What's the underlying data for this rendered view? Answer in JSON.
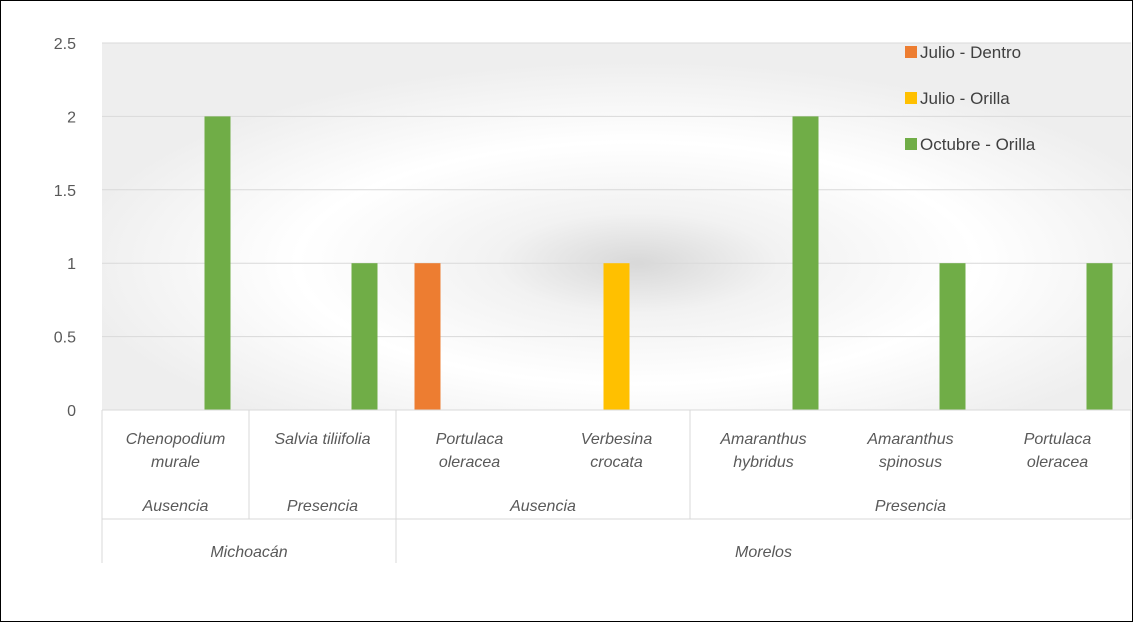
{
  "chart_data": {
    "type": "bar",
    "yticks": [
      "0",
      "0.5",
      "1",
      "1.5",
      "2",
      "2.5"
    ],
    "ylim": [
      0,
      2.5
    ],
    "grid": true,
    "legend_position": "top-right",
    "categories": [
      {
        "lines": [
          "Chenopodium",
          "murale"
        ]
      },
      {
        "lines": [
          "Salvia tiliifolia"
        ]
      },
      {
        "lines": [
          "Portulaca",
          "oleracea"
        ]
      },
      {
        "lines": [
          "Verbesina",
          "crocata"
        ]
      },
      {
        "lines": [
          "Amaranthus",
          "hybridus"
        ]
      },
      {
        "lines": [
          "Amaranthus",
          "spinosus"
        ]
      },
      {
        "lines": [
          "Portulaca",
          "oleracea"
        ]
      }
    ],
    "level2": [
      {
        "label": "Ausencia",
        "span": [
          0,
          0
        ]
      },
      {
        "label": "Presencia",
        "span": [
          1,
          1
        ]
      },
      {
        "label": "Ausencia",
        "span": [
          2,
          3
        ]
      },
      {
        "label": "Presencia",
        "span": [
          4,
          6
        ]
      }
    ],
    "level3": [
      {
        "label": "Michoacán",
        "span": [
          0,
          1
        ]
      },
      {
        "label": "Morelos",
        "span": [
          2,
          6
        ]
      }
    ],
    "series": [
      {
        "name": "Julio - Dentro",
        "color": "#ED7D31",
        "values": [
          0,
          0,
          1,
          0,
          0,
          0,
          0
        ]
      },
      {
        "name": "Julio - Orilla",
        "color": "#FFC000",
        "values": [
          0,
          0,
          0,
          1,
          0,
          0,
          0
        ]
      },
      {
        "name": "Octubre - Orilla",
        "color": "#70AD47",
        "values": [
          2,
          1,
          0,
          0,
          2,
          1,
          1
        ]
      }
    ]
  }
}
